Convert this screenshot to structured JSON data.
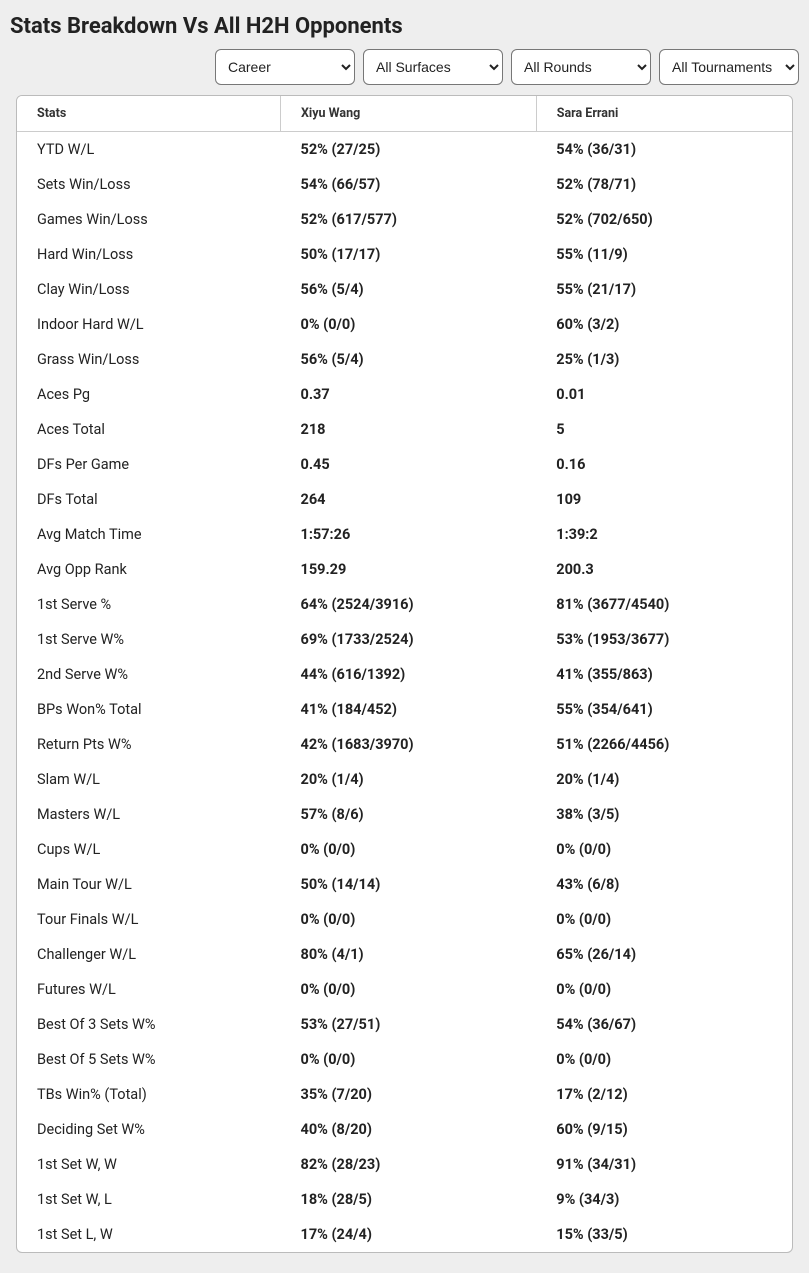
{
  "title": "Stats Breakdown Vs All H2H Opponents",
  "filters": {
    "career": {
      "selected": "Career",
      "options": [
        "Career"
      ]
    },
    "surfaces": {
      "selected": "All Surfaces",
      "options": [
        "All Surfaces"
      ]
    },
    "rounds": {
      "selected": "All Rounds",
      "options": [
        "All Rounds"
      ]
    },
    "tournaments": {
      "selected": "All Tournaments",
      "options": [
        "All Tournaments"
      ]
    }
  },
  "columns": {
    "stats": "Stats",
    "player1": "Xiyu Wang",
    "player2": "Sara Errani"
  },
  "rows": [
    {
      "label": "YTD W/L",
      "p1": "52% (27/25)",
      "p2": "54% (36/31)"
    },
    {
      "label": "Sets Win/Loss",
      "p1": "54% (66/57)",
      "p2": "52% (78/71)"
    },
    {
      "label": "Games Win/Loss",
      "p1": "52% (617/577)",
      "p2": "52% (702/650)"
    },
    {
      "label": "Hard Win/Loss",
      "p1": "50% (17/17)",
      "p2": "55% (11/9)"
    },
    {
      "label": "Clay Win/Loss",
      "p1": "56% (5/4)",
      "p2": "55% (21/17)"
    },
    {
      "label": "Indoor Hard W/L",
      "p1": "0% (0/0)",
      "p2": "60% (3/2)"
    },
    {
      "label": "Grass Win/Loss",
      "p1": "56% (5/4)",
      "p2": "25% (1/3)"
    },
    {
      "label": "Aces Pg",
      "p1": "0.37",
      "p2": "0.01"
    },
    {
      "label": "Aces Total",
      "p1": "218",
      "p2": "5"
    },
    {
      "label": "DFs Per Game",
      "p1": "0.45",
      "p2": "0.16"
    },
    {
      "label": "DFs Total",
      "p1": "264",
      "p2": "109"
    },
    {
      "label": "Avg Match Time",
      "p1": "1:57:26",
      "p2": "1:39:2"
    },
    {
      "label": "Avg Opp Rank",
      "p1": "159.29",
      "p2": "200.3"
    },
    {
      "label": "1st Serve %",
      "p1": "64% (2524/3916)",
      "p2": "81% (3677/4540)"
    },
    {
      "label": "1st Serve W%",
      "p1": "69% (1733/2524)",
      "p2": "53% (1953/3677)"
    },
    {
      "label": "2nd Serve W%",
      "p1": "44% (616/1392)",
      "p2": "41% (355/863)"
    },
    {
      "label": "BPs Won% Total",
      "p1": "41% (184/452)",
      "p2": "55% (354/641)"
    },
    {
      "label": "Return Pts W%",
      "p1": "42% (1683/3970)",
      "p2": "51% (2266/4456)"
    },
    {
      "label": "Slam W/L",
      "p1": "20% (1/4)",
      "p2": "20% (1/4)"
    },
    {
      "label": "Masters W/L",
      "p1": "57% (8/6)",
      "p2": "38% (3/5)"
    },
    {
      "label": "Cups W/L",
      "p1": "0% (0/0)",
      "p2": "0% (0/0)"
    },
    {
      "label": "Main Tour W/L",
      "p1": "50% (14/14)",
      "p2": "43% (6/8)"
    },
    {
      "label": "Tour Finals W/L",
      "p1": "0% (0/0)",
      "p2": "0% (0/0)"
    },
    {
      "label": "Challenger W/L",
      "p1": "80% (4/1)",
      "p2": "65% (26/14)"
    },
    {
      "label": "Futures W/L",
      "p1": "0% (0/0)",
      "p2": "0% (0/0)"
    },
    {
      "label": "Best Of 3 Sets W%",
      "p1": "53% (27/51)",
      "p2": "54% (36/67)"
    },
    {
      "label": "Best Of 5 Sets W%",
      "p1": "0% (0/0)",
      "p2": "0% (0/0)"
    },
    {
      "label": "TBs Win% (Total)",
      "p1": "35% (7/20)",
      "p2": "17% (2/12)"
    },
    {
      "label": "Deciding Set W%",
      "p1": "40% (8/20)",
      "p2": "60% (9/15)"
    },
    {
      "label": "1st Set W, W",
      "p1": "82% (28/23)",
      "p2": "91% (34/31)"
    },
    {
      "label": "1st Set W, L",
      "p1": "18% (28/5)",
      "p2": "9% (34/3)"
    },
    {
      "label": "1st Set L, W",
      "p1": "17% (24/4)",
      "p2": "15% (33/5)"
    }
  ],
  "styling": {
    "type": "table",
    "background_color": "#eeeeee",
    "table_background": "#ffffff",
    "border_color": "#bbbbbb",
    "header_border_color": "#cccccc",
    "title_fontsize": 22,
    "title_fontweight": 700,
    "header_fontsize": 12.5,
    "header_fontweight": 700,
    "cell_fontsize": 14.5,
    "label_fontweight": 400,
    "value_fontweight": 700,
    "text_color": "#222222",
    "column_widths_pct": [
      34,
      33,
      33
    ],
    "border_radius": 6,
    "select_height": 36,
    "select_border_color": "#777777"
  }
}
